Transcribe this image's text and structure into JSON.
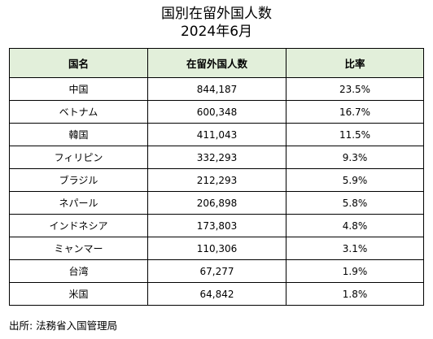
{
  "title": {
    "line1": "国別在留外国人数",
    "line2": "2024年6月"
  },
  "table": {
    "headers": [
      "国名",
      "在留外国人数",
      "比率"
    ],
    "rows": [
      {
        "country": "中国",
        "count": "844,187",
        "ratio": "23.5%"
      },
      {
        "country": "ベトナム",
        "count": "600,348",
        "ratio": "16.7%"
      },
      {
        "country": "韓国",
        "count": "411,043",
        "ratio": "11.5%"
      },
      {
        "country": "フィリピン",
        "count": "332,293",
        "ratio": "9.3%"
      },
      {
        "country": "ブラジル",
        "count": "212,293",
        "ratio": "5.9%"
      },
      {
        "country": "ネパール",
        "count": "206,898",
        "ratio": "5.8%"
      },
      {
        "country": "インドネシア",
        "count": "173,803",
        "ratio": "4.8%"
      },
      {
        "country": "ミャンマー",
        "count": "110,306",
        "ratio": "3.1%"
      },
      {
        "country": "台湾",
        "count": "67,277",
        "ratio": "1.9%"
      },
      {
        "country": "米国",
        "count": "64,842",
        "ratio": "1.8%"
      }
    ]
  },
  "source": "出所: 法務省入国管理局",
  "colors": {
    "header_fill": "#e2efda",
    "border": "#000000"
  }
}
